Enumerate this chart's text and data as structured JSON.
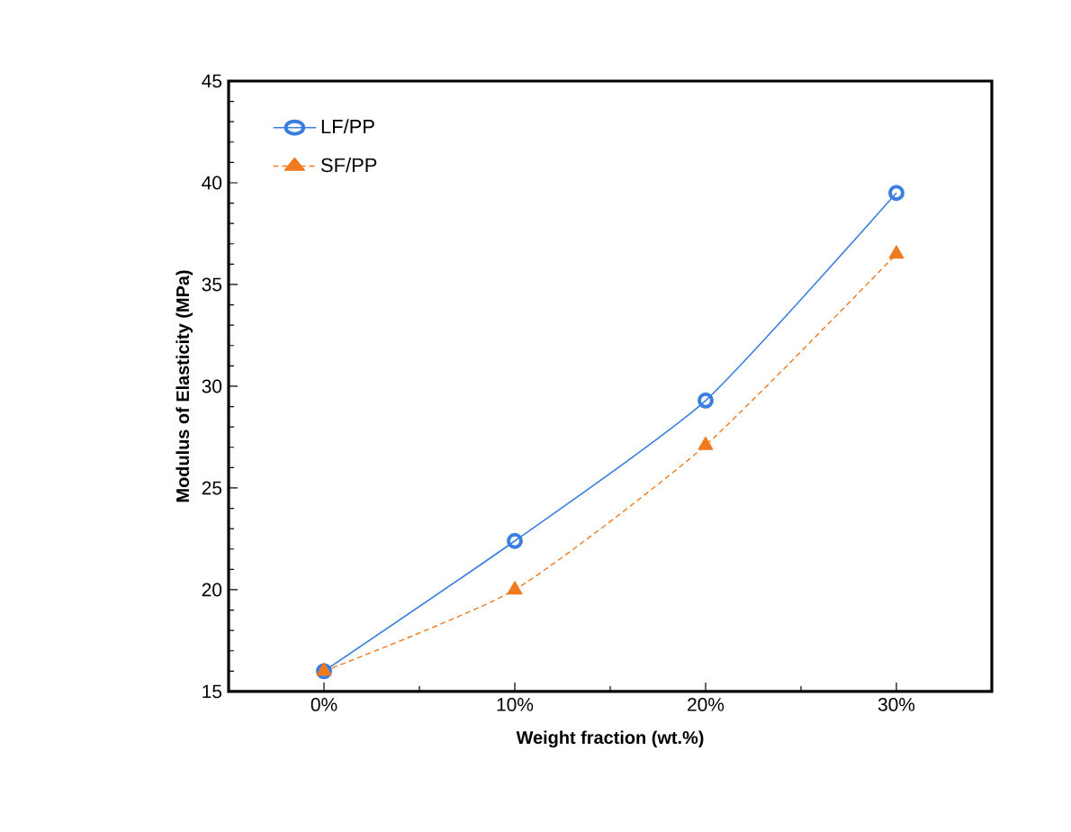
{
  "chart_data": {
    "type": "line",
    "xlabel": "Weight fraction (wt.%)",
    "ylabel": "Modulus of Elasticity (MPa)",
    "categories": [
      "0%",
      "10%",
      "20%",
      "30%"
    ],
    "series": [
      {
        "name": "LF/PP",
        "color": "#3a7fe0",
        "marker": "circle",
        "line_style": "solid",
        "values": [
          16,
          22.4,
          29.3,
          39.5
        ]
      },
      {
        "name": "SF/PP",
        "color": "#f07a1e",
        "marker": "triangle",
        "line_style": "dotted",
        "values": [
          16,
          20,
          27.1,
          36.5
        ]
      }
    ],
    "ylim": [
      15,
      45
    ],
    "yticks": [
      15,
      20,
      25,
      30,
      35,
      40,
      45
    ],
    "grid": false,
    "legend": "top left"
  }
}
